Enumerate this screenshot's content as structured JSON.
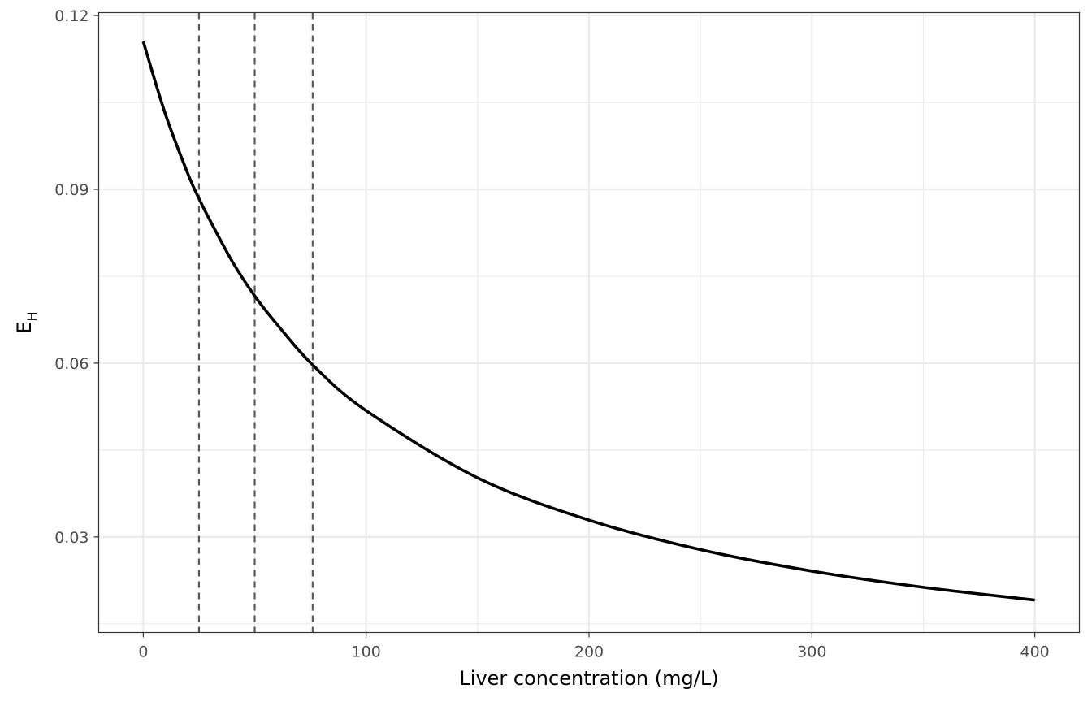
{
  "chart_data": {
    "type": "line",
    "xlabel": "Liver concentration (mg/L)",
    "ylabel": {
      "main": "E",
      "subscript": "H"
    },
    "xlim": [
      -20,
      420
    ],
    "ylim": [
      0.0135,
      0.1205
    ],
    "x_ticks": [
      0,
      100,
      200,
      300,
      400
    ],
    "y_ticks": [
      0.03,
      0.06,
      0.09,
      0.12
    ],
    "x_tick_labels": [
      "0",
      "100",
      "200",
      "300",
      "400"
    ],
    "y_tick_labels": [
      "0.03",
      "0.06",
      "0.09",
      "0.12"
    ],
    "grid": true,
    "vertical_reference_lines": [
      25,
      50,
      76
    ],
    "series": [
      {
        "x": [
          0,
          10,
          20,
          25,
          30,
          40,
          50,
          60,
          76,
          100,
          150,
          200,
          250,
          300,
          350,
          400
        ],
        "y": [
          0.1155,
          0.1029,
          0.0927,
          0.0884,
          0.0846,
          0.0775,
          0.0716,
          0.0667,
          0.0597,
          0.0518,
          0.0402,
          0.0329,
          0.0278,
          0.0241,
          0.0213,
          0.0191
        ]
      }
    ],
    "colors": {
      "line": "#000000",
      "reference_lines": "#595959",
      "grid": "#ebebeb",
      "panel_border": "#333333"
    }
  }
}
